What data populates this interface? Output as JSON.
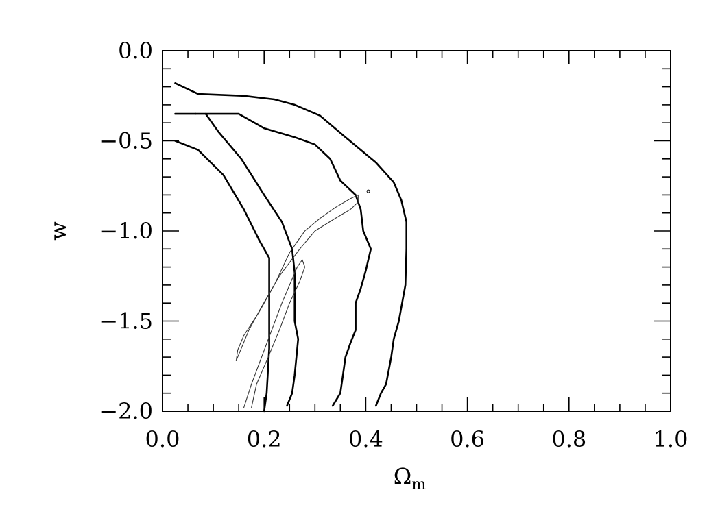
{
  "chart_data": {
    "type": "line",
    "title": "",
    "xlabel": "Ω",
    "xlabel_sub": "m",
    "ylabel": "w",
    "xlim": [
      0.0,
      1.0
    ],
    "ylim": [
      -2.0,
      0.0
    ],
    "x_ticks": [
      {
        "value": 0.0,
        "label": "0.0"
      },
      {
        "value": 0.2,
        "label": "0.2"
      },
      {
        "value": 0.4,
        "label": "0.4"
      },
      {
        "value": 0.6,
        "label": "0.6"
      },
      {
        "value": 0.8,
        "label": "0.8"
      },
      {
        "value": 1.0,
        "label": "1.0"
      }
    ],
    "y_ticks": [
      {
        "value": 0.0,
        "label": "0.0"
      },
      {
        "value": -0.5,
        "label": "−0.5"
      },
      {
        "value": -1.0,
        "label": "−1.0"
      },
      {
        "value": -1.5,
        "label": "−1.5"
      },
      {
        "value": -2.0,
        "label": "−2.0"
      }
    ],
    "x_minor_step": 0.05,
    "y_minor_step": 0.1,
    "grid": false,
    "legend": "none",
    "series": [
      {
        "style": "thick",
        "points": [
          [
            0.025,
            -0.5
          ],
          [
            0.07,
            -0.55
          ],
          [
            0.12,
            -0.69
          ],
          [
            0.16,
            -0.88
          ],
          [
            0.19,
            -1.05
          ],
          [
            0.21,
            -1.15
          ],
          [
            0.21,
            -1.3
          ],
          [
            0.21,
            -1.55
          ],
          [
            0.21,
            -1.65
          ],
          [
            0.207,
            -1.8
          ],
          [
            0.205,
            -1.9
          ],
          [
            0.2,
            -2.0
          ]
        ]
      },
      {
        "style": "thick",
        "points": [
          [
            0.085,
            -0.35
          ],
          [
            0.11,
            -0.45
          ],
          [
            0.155,
            -0.6
          ],
          [
            0.2,
            -0.8
          ],
          [
            0.235,
            -0.95
          ],
          [
            0.255,
            -1.1
          ],
          [
            0.26,
            -1.23
          ],
          [
            0.26,
            -1.35
          ],
          [
            0.26,
            -1.5
          ],
          [
            0.267,
            -1.6
          ],
          [
            0.26,
            -1.8
          ],
          [
            0.255,
            -1.9
          ],
          [
            0.245,
            -1.97
          ]
        ]
      },
      {
        "style": "thick",
        "points": [
          [
            0.025,
            -0.18
          ],
          [
            0.07,
            -0.24
          ],
          [
            0.16,
            -0.25
          ],
          [
            0.22,
            -0.27
          ],
          [
            0.26,
            -0.3
          ],
          [
            0.31,
            -0.36
          ],
          [
            0.36,
            -0.48
          ],
          [
            0.42,
            -0.62
          ],
          [
            0.455,
            -0.73
          ],
          [
            0.47,
            -0.83
          ],
          [
            0.48,
            -0.95
          ],
          [
            0.48,
            -1.1
          ],
          [
            0.478,
            -1.3
          ],
          [
            0.465,
            -1.5
          ],
          [
            0.455,
            -1.6
          ],
          [
            0.45,
            -1.7
          ],
          [
            0.44,
            -1.85
          ],
          [
            0.43,
            -1.9
          ],
          [
            0.42,
            -1.97
          ]
        ]
      },
      {
        "style": "thick",
        "points": [
          [
            0.025,
            -0.35
          ],
          [
            0.065,
            -0.35
          ]
        ]
      },
      {
        "style": "thick",
        "points": [
          [
            0.065,
            -0.35
          ],
          [
            0.1,
            -0.35
          ],
          [
            0.15,
            -0.35
          ],
          [
            0.2,
            -0.43
          ],
          [
            0.26,
            -0.48
          ],
          [
            0.3,
            -0.52
          ],
          [
            0.33,
            -0.6
          ],
          [
            0.35,
            -0.72
          ],
          [
            0.38,
            -0.8
          ],
          [
            0.39,
            -0.88
          ],
          [
            0.395,
            -1.0
          ],
          [
            0.41,
            -1.1
          ],
          [
            0.4,
            -1.22
          ],
          [
            0.39,
            -1.32
          ],
          [
            0.38,
            -1.4
          ],
          [
            0.38,
            -1.55
          ],
          [
            0.37,
            -1.62
          ],
          [
            0.36,
            -1.7
          ],
          [
            0.355,
            -1.8
          ],
          [
            0.35,
            -1.9
          ],
          [
            0.335,
            -1.97
          ]
        ]
      },
      {
        "style": "thin",
        "points": [
          [
            0.145,
            -1.72
          ],
          [
            0.148,
            -1.66
          ],
          [
            0.16,
            -1.58
          ],
          [
            0.19,
            -1.45
          ],
          [
            0.22,
            -1.3
          ],
          [
            0.25,
            -1.12
          ],
          [
            0.28,
            -1.0
          ],
          [
            0.31,
            -0.93
          ],
          [
            0.34,
            -0.87
          ],
          [
            0.37,
            -0.82
          ],
          [
            0.385,
            -0.8
          ],
          [
            0.385,
            -0.84
          ],
          [
            0.37,
            -0.88
          ],
          [
            0.34,
            -0.93
          ],
          [
            0.3,
            -1.0
          ],
          [
            0.27,
            -1.1
          ],
          [
            0.23,
            -1.25
          ],
          [
            0.195,
            -1.42
          ],
          [
            0.17,
            -1.55
          ],
          [
            0.145,
            -1.72
          ]
        ]
      },
      {
        "style": "thin",
        "points": [
          [
            0.16,
            -1.98
          ],
          [
            0.175,
            -1.85
          ],
          [
            0.195,
            -1.7
          ],
          [
            0.215,
            -1.55
          ],
          [
            0.235,
            -1.4
          ],
          [
            0.25,
            -1.3
          ],
          [
            0.265,
            -1.2
          ],
          [
            0.275,
            -1.16
          ],
          [
            0.28,
            -1.2
          ],
          [
            0.27,
            -1.28
          ],
          [
            0.25,
            -1.4
          ],
          [
            0.23,
            -1.55
          ],
          [
            0.205,
            -1.72
          ],
          [
            0.185,
            -1.85
          ],
          [
            0.175,
            -1.98
          ]
        ]
      }
    ],
    "markers": [
      {
        "x": 0.405,
        "y": -0.78
      }
    ]
  }
}
